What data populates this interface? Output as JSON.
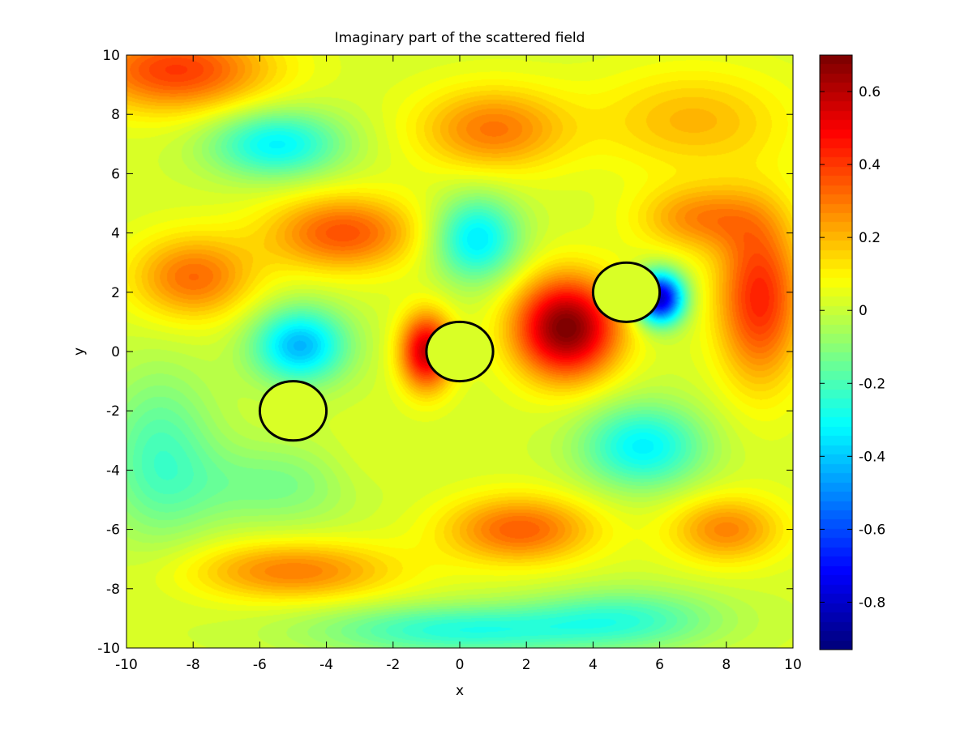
{
  "chart_data": {
    "type": "heatmap",
    "title": "Imaginary part of the scattered field",
    "xlabel": "x",
    "ylabel": "y",
    "xlim": [
      -10,
      10
    ],
    "ylim": [
      -10,
      10
    ],
    "xticks": [
      -10,
      -8,
      -6,
      -4,
      -2,
      0,
      2,
      4,
      6,
      8,
      10
    ],
    "yticks": [
      -10,
      -8,
      -6,
      -4,
      -2,
      0,
      2,
      4,
      6,
      8,
      10
    ],
    "colorbar": {
      "colormap": "jet",
      "range": [
        -0.93,
        0.7
      ],
      "ticks": [
        -0.8,
        -0.6,
        -0.4,
        -0.2,
        0,
        0.2,
        0.4,
        0.6
      ],
      "tick_labels": [
        "-0.8",
        "-0.6",
        "-0.4",
        "-0.2",
        "0",
        "0.2",
        "0.4",
        "0.6"
      ]
    },
    "scatterers": [
      {
        "cx": -5,
        "cy": -2,
        "r": 1
      },
      {
        "cx": 0,
        "cy": 0,
        "r": 1
      },
      {
        "cx": 5,
        "cy": 2,
        "r": 1
      }
    ],
    "field_background": 0.02,
    "field_features": [
      {
        "x": -8.5,
        "y": 9.5,
        "value": 0.38,
        "sx": 2.0,
        "sy": 1.0
      },
      {
        "x": -5.5,
        "y": 7.0,
        "value": -0.35,
        "sx": 1.4,
        "sy": 0.8
      },
      {
        "x": 1.0,
        "y": 7.5,
        "value": 0.28,
        "sx": 1.6,
        "sy": 1.0
      },
      {
        "x": -3.5,
        "y": 4.0,
        "value": 0.34,
        "sx": 1.6,
        "sy": 0.9
      },
      {
        "x": -8.0,
        "y": 2.5,
        "value": 0.3,
        "sx": 1.3,
        "sy": 1.0
      },
      {
        "x": 0.5,
        "y": 3.8,
        "value": -0.38,
        "sx": 0.9,
        "sy": 1.0
      },
      {
        "x": -4.8,
        "y": 0.2,
        "value": -0.45,
        "sx": 1.0,
        "sy": 0.9
      },
      {
        "x": -1.0,
        "y": 0.0,
        "value": 0.55,
        "sx": 0.55,
        "sy": 0.9
      },
      {
        "x": 3.2,
        "y": 0.8,
        "value": 0.68,
        "sx": 1.1,
        "sy": 1.2
      },
      {
        "x": 6.0,
        "y": 1.8,
        "value": -0.85,
        "sx": 0.5,
        "sy": 0.6
      },
      {
        "x": 9.0,
        "y": 1.8,
        "value": 0.42,
        "sx": 0.9,
        "sy": 2.0
      },
      {
        "x": 7.2,
        "y": 4.5,
        "value": 0.25,
        "sx": 1.3,
        "sy": 0.8
      },
      {
        "x": 5.5,
        "y": -3.2,
        "value": -0.35,
        "sx": 1.3,
        "sy": 1.0
      },
      {
        "x": -9.0,
        "y": -3.5,
        "value": -0.22,
        "sx": 1.2,
        "sy": 2.0
      },
      {
        "x": -5.5,
        "y": -4.5,
        "value": -0.15,
        "sx": 2.0,
        "sy": 1.0
      },
      {
        "x": 1.8,
        "y": -6.0,
        "value": 0.32,
        "sx": 1.6,
        "sy": 0.8
      },
      {
        "x": -5.0,
        "y": -7.4,
        "value": 0.27,
        "sx": 2.2,
        "sy": 0.7
      },
      {
        "x": 8.0,
        "y": -6.0,
        "value": 0.26,
        "sx": 1.2,
        "sy": 0.8
      },
      {
        "x": 0.0,
        "y": -9.4,
        "value": -0.28,
        "sx": 3.0,
        "sy": 0.6
      },
      {
        "x": 5.0,
        "y": -9.0,
        "value": -0.22,
        "sx": 2.0,
        "sy": 0.7
      },
      {
        "x": -3.0,
        "y": -4.0,
        "value": 0.05,
        "sx": 1.0,
        "sy": 1.0
      },
      {
        "x": 7.0,
        "y": 7.8,
        "value": 0.18,
        "sx": 2.0,
        "sy": 1.2
      }
    ]
  }
}
